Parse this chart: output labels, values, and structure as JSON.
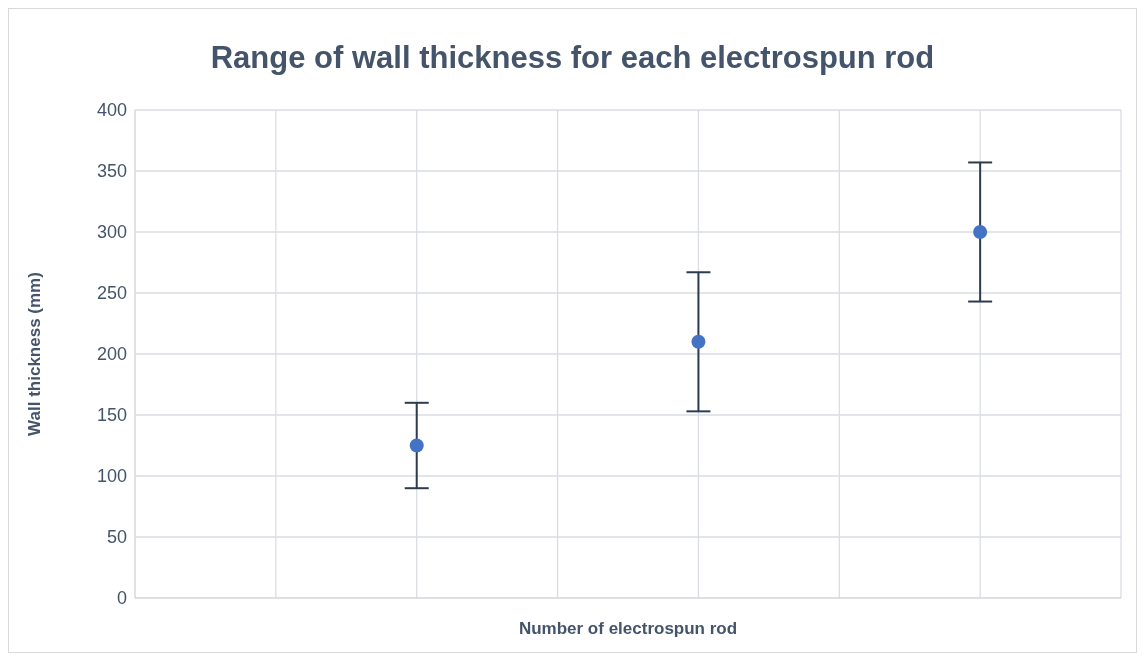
{
  "chart_data": {
    "type": "scatter",
    "title": "Range of wall thickness for each electrospun rod",
    "xlabel": "Number of electrospun rod",
    "ylabel": "Wall thickness (mm)",
    "categories": [
      null,
      null,
      null,
      null,
      null,
      null,
      null,
      null
    ],
    "values": [
      null,
      null,
      125,
      null,
      210,
      null,
      300,
      null
    ],
    "errors": [
      null,
      null,
      35,
      null,
      57,
      null,
      57,
      null
    ],
    "color": "#4472c4",
    "ylim": [
      0,
      400
    ],
    "yticks": [
      0,
      50,
      100,
      150,
      200,
      250,
      300,
      350,
      400
    ],
    "grid": true,
    "marker": "circle"
  }
}
